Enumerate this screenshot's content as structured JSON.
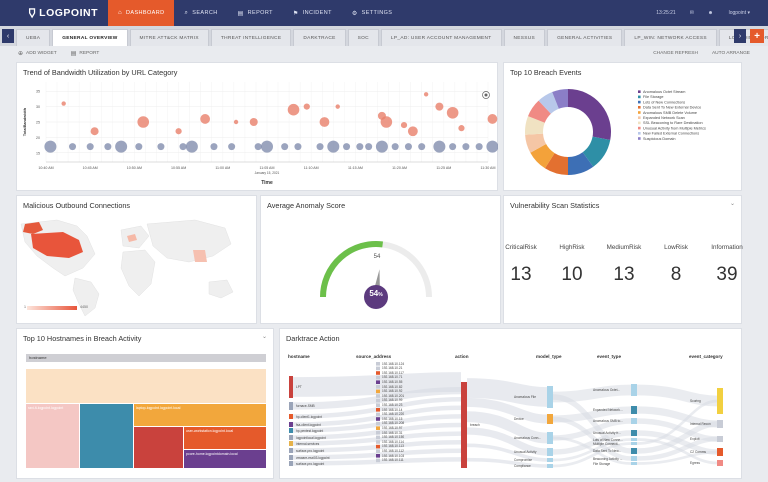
{
  "nav": {
    "logo": "LOGPOINT",
    "items": [
      {
        "label": "DASHBOARD",
        "icon": "home-icon",
        "active": true
      },
      {
        "label": "SEARCH",
        "icon": "search-icon",
        "active": false
      },
      {
        "label": "REPORT",
        "icon": "report-icon",
        "active": false
      },
      {
        "label": "INCIDENT",
        "icon": "incident-icon",
        "active": false
      },
      {
        "label": "SETTINGS",
        "icon": "gear-icon",
        "active": false
      }
    ],
    "time": "13:25:21",
    "user": "logpoint"
  },
  "tabs": [
    {
      "label": "UEBA",
      "active": false
    },
    {
      "label": "GENERAL OVERVIEW",
      "active": true
    },
    {
      "label": "MITRE ATT&CK MATRIX",
      "active": false
    },
    {
      "label": "THREAT INTELLIGENCE",
      "active": false
    },
    {
      "label": "DARKTRACE",
      "active": false
    },
    {
      "label": "SOC",
      "active": false
    },
    {
      "label": "LP_AD: USER ACCOUNT MANAGEMENT",
      "active": false
    },
    {
      "label": "NESSUS",
      "active": false
    },
    {
      "label": "GENERAL ACTIVITIES",
      "active": false
    },
    {
      "label": "LP_WIN: NETWORK ACCESS",
      "active": false
    },
    {
      "label": "LOGPOINT FOR SAP",
      "active": false
    }
  ],
  "toolbar": {
    "add_widget": "ADD WIDGET",
    "report": "REPORT",
    "change_refresh": "CHANGE REFRESH",
    "auto_arrange": "AUTO ARRANGE"
  },
  "panels": {
    "bandwidth_title": "Trend of Bandwidth Utilization by URL Category",
    "breach_title": "Top 10 Breach Events",
    "malicious_title": "Malicious Outbound Connections",
    "anomaly_title": "Average Anomaly Score",
    "vuln_title": "Vulnerability Scan Statistics",
    "hostnames_title": "Top 10 Hostnames in Breach Activity",
    "darktrace_title": "Darktrace Action"
  },
  "chart_data": [
    {
      "type": "scatter",
      "title": "Trend of Bandwidth Utilization by URL Category",
      "xlabel": "Time",
      "ylabel": "TotalBandwidth",
      "x_ticks": [
        "10:40 AM",
        "10:45 AM",
        "10:50 AM",
        "10:55 AM",
        "11:00 AM",
        "11:05 AM",
        "11:10 AM",
        "11:15 AM",
        "11:20 AM",
        "11:25 AM",
        "11:30 AM"
      ],
      "x_caption": "January 15, 2021",
      "y_ticks": [
        "35",
        "30",
        "25",
        "20",
        "15"
      ],
      "ylim": [
        12,
        38
      ],
      "series": [
        {
          "color": "#e8806a",
          "points": [
            [
              0.4,
              31
            ],
            [
              1.1,
              22
            ],
            [
              2.2,
              25
            ],
            [
              3.0,
              22
            ],
            [
              3.6,
              26
            ],
            [
              4.3,
              25
            ],
            [
              4.7,
              25
            ],
            [
              5.6,
              29
            ],
            [
              5.9,
              30
            ],
            [
              6.3,
              25
            ],
            [
              6.6,
              30
            ],
            [
              7.6,
              27
            ],
            [
              7.7,
              25
            ],
            [
              8.1,
              24
            ],
            [
              8.3,
              22
            ],
            [
              8.6,
              34
            ],
            [
              8.9,
              30
            ],
            [
              9.2,
              28
            ],
            [
              9.4,
              23
            ],
            [
              10.1,
              26
            ],
            [
              10.3,
              33
            ],
            [
              10.7,
              25
            ],
            [
              10.8,
              24
            ]
          ]
        },
        {
          "color": "#7a86a8",
          "points": [
            [
              0.1,
              17
            ],
            [
              0.6,
              17
            ],
            [
              1.0,
              17
            ],
            [
              1.4,
              17
            ],
            [
              1.7,
              17
            ],
            [
              2.1,
              17
            ],
            [
              2.6,
              17
            ],
            [
              3.1,
              17
            ],
            [
              3.3,
              17
            ],
            [
              3.8,
              17
            ],
            [
              4.2,
              17
            ],
            [
              4.8,
              17
            ],
            [
              5.0,
              17
            ],
            [
              5.4,
              17
            ],
            [
              5.7,
              17
            ],
            [
              6.2,
              17
            ],
            [
              6.5,
              17
            ],
            [
              6.8,
              17
            ],
            [
              7.1,
              17
            ],
            [
              7.3,
              17
            ],
            [
              7.6,
              17
            ],
            [
              7.9,
              17
            ],
            [
              8.2,
              17
            ],
            [
              8.5,
              17
            ],
            [
              8.9,
              17
            ],
            [
              9.2,
              17
            ],
            [
              9.5,
              17
            ],
            [
              9.8,
              17
            ],
            [
              10.1,
              17
            ],
            [
              10.4,
              17
            ],
            [
              10.8,
              17
            ]
          ]
        }
      ]
    },
    {
      "type": "pie",
      "title": "Top 10 Breach Events",
      "labels": [
        "Anomalous Octet Stream",
        "File Storage",
        "Lots of New Connections",
        "Data Sent To New External Device",
        "Anomalous SMB Delete Volume",
        "Expanded Network Scan",
        "SSL Beaconing to Rare Destination",
        "Unusual Activity from Multiple Metrics",
        "New Failed External Connections",
        "Suspicious Domain"
      ],
      "values": [
        28,
        12,
        10,
        9,
        8,
        7,
        7,
        7,
        6,
        6
      ],
      "colors": [
        "#6b3f8f",
        "#2e8fa6",
        "#3d6fb5",
        "#e37030",
        "#f3a23a",
        "#f5c6a5",
        "#f0e2c2",
        "#f08a84",
        "#b8c8ea",
        "#8b7ec7"
      ]
    },
    {
      "type": "table",
      "title": "Vulnerability Scan Statistics",
      "categories": [
        "CriticalRisk",
        "HighRisk",
        "MediumRisk",
        "LowRisk",
        "Information"
      ],
      "values": [
        13,
        10,
        13,
        8,
        39
      ]
    }
  ],
  "anomaly": {
    "value": "54",
    "display": "54",
    "unit": "%"
  },
  "map": {
    "legend_min": "1",
    "legend_max": "4450"
  },
  "hostnames": {
    "header": "hostname",
    "labels": [
      "ravi-lt-logpoint.logpoint",
      "laptop-logpoint.logpoint.local",
      "user-workstation.logpoint.local",
      "pcore-home.logpointdomain.local"
    ]
  },
  "darktrace": {
    "columns": [
      "hostname",
      "source_address",
      "action",
      "model_type",
      "event_type",
      "event_category"
    ],
    "hosts": [
      "LPT",
      "furnace-SMB",
      "hp-client1.logpoint",
      "fsa-client.logpoint",
      "hp-pentest.logpoint",
      "logpointlocal.logpoint",
      "internal-services",
      "surface-pro.logpoint",
      "vmware-esxi03.logpoint",
      "surface-pro.logpoint"
    ],
    "ips": [
      "192.168.10.124",
      "192.168.10.21",
      "192.168.10.117",
      "192.168.10.71",
      "192.168.10.55",
      "192.168.10.82",
      "192.168.10.92",
      "192.168.10.201",
      "192.168.10.99",
      "192.168.10.23",
      "192.168.10.14",
      "192.168.10.220",
      "192.168.10.15",
      "192.168.10.208",
      "192.168.10.97",
      "192.168.10.31",
      "192.168.10.150",
      "192.168.10.114",
      "192.168.10.113",
      "192.168.10.112",
      "192.168.10.103",
      "192.168.10.111"
    ],
    "action": "breach",
    "model_types": [
      "Anomalous File",
      "Device",
      "Anomalous Conn...",
      "Unusual Activity",
      "Compromise",
      "Compliance"
    ],
    "event_types": [
      "Anomalous Octet...",
      "Expanded Network...",
      "Anomalous SMB to...",
      "Unusual Activity fr...",
      "Lots of New Conne...",
      "Multiple Connecti...",
      "Data Sent To New...",
      "Beaconing Activity ...",
      "File Storage"
    ],
    "event_categories": [
      "Scoring",
      "Internal Recon",
      "Exploit",
      "C2 Comms",
      "Egress"
    ]
  }
}
